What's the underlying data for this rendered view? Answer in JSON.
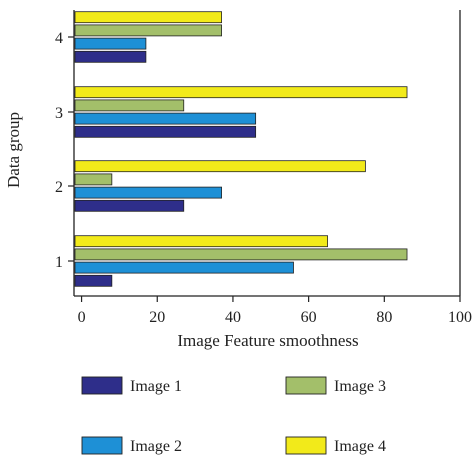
{
  "chart_data": {
    "type": "bar",
    "orientation": "horizontal",
    "categories": [
      "1",
      "2",
      "3",
      "4"
    ],
    "series": [
      {
        "name": "Image 1",
        "color": "#2e2e8a",
        "values": [
          8,
          27,
          46,
          17
        ]
      },
      {
        "name": "Image 2",
        "color": "#1e90d6",
        "values": [
          56,
          37,
          46,
          17
        ]
      },
      {
        "name": "Image 3",
        "color": "#a3bf6a",
        "values": [
          86,
          8,
          27,
          37
        ]
      },
      {
        "name": "Image 4",
        "color": "#f2ea1a",
        "values": [
          65,
          75,
          86,
          37
        ]
      }
    ],
    "xlabel": "Image Feature smoothness",
    "ylabel": "Data group",
    "xlim": [
      -2,
      100
    ],
    "xticks": [
      0,
      20,
      40,
      60,
      80,
      100
    ],
    "grid": false,
    "legend": "bottom"
  }
}
